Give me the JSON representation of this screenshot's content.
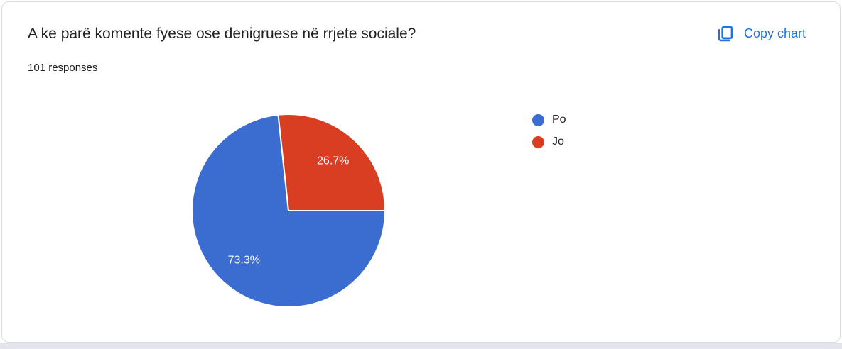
{
  "card": {
    "header": {
      "copy_chart_label": "Copy chart"
    }
  },
  "chart_data": {
    "type": "pie",
    "title": "A ke parë komente fyese ose denigruese në rrjete sociale?",
    "subtitle": "101 responses",
    "total_responses": 101,
    "labels": [
      "Po",
      "Jo"
    ],
    "values_pct": [
      73.3,
      26.7
    ],
    "slice_labels": [
      "73.3%",
      "26.7%"
    ],
    "colors": [
      "#3b6dd0",
      "#d93e22"
    ],
    "slice_border_color": "#ffffff",
    "start_angle_deg_clockwise_from_east": 0,
    "legend_position": "right"
  },
  "theme": {
    "accent_blue": "#1a73e8",
    "title_color": "#202124",
    "card_border": "#dadce0",
    "page_strip": "#e4e4ee"
  }
}
